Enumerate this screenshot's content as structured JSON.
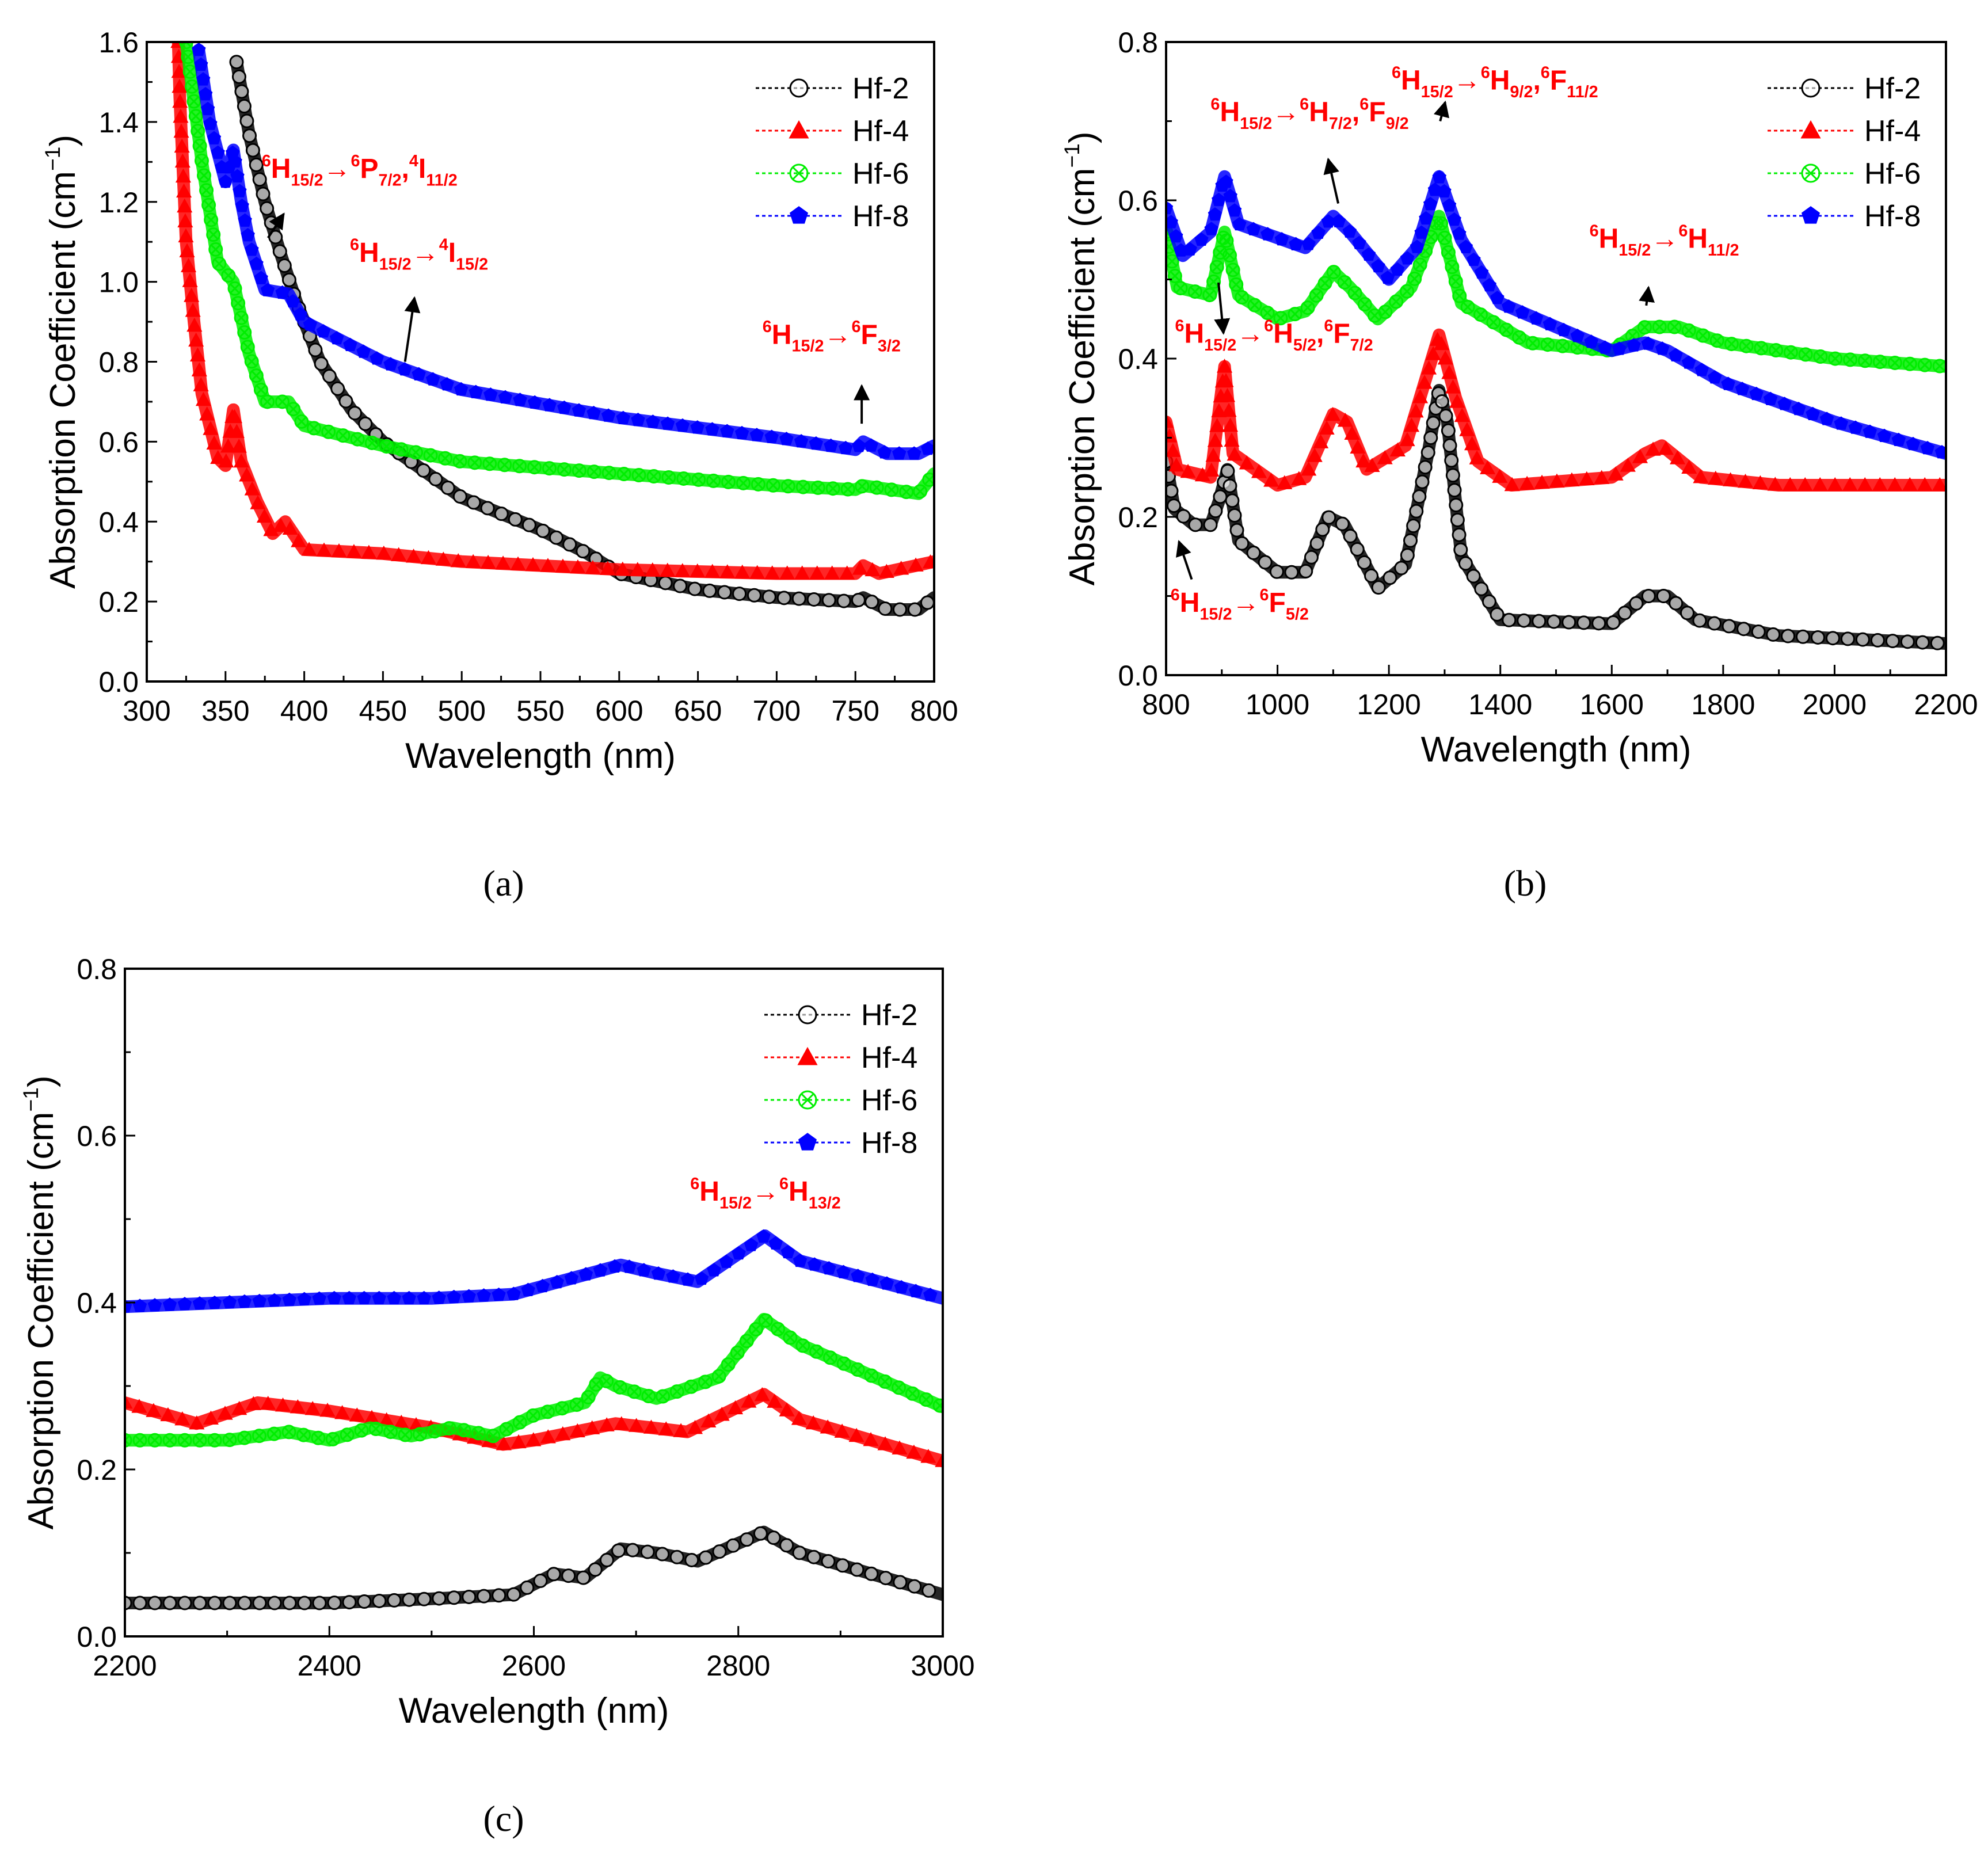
{
  "chart_data": [
    {
      "type": "line",
      "panel_label": "(a)",
      "xlabel": "Wavelength (nm)",
      "ylabel_parts": [
        {
          "t": "Absorption Coefficient (cm"
        },
        {
          "t": "−1",
          "s": "sup"
        },
        {
          "t": ")"
        }
      ],
      "xlim": [
        300,
        800
      ],
      "ylim": [
        0,
        1.6
      ],
      "xticks": [
        300,
        350,
        400,
        450,
        500,
        550,
        600,
        650,
        700,
        750,
        800
      ],
      "yticks": [
        0,
        0.2,
        0.4,
        0.6,
        0.8,
        1.0,
        1.2,
        1.4,
        1.6
      ],
      "grid": false,
      "legend": "top-right",
      "series": [
        {
          "name": "Hf-2",
          "color": "#000000",
          "marker": "circle",
          "x": [
            357,
            365,
            375,
            385,
            395,
            410,
            430,
            450,
            500,
            550,
            580,
            600,
            650,
            700,
            750,
            755,
            770,
            790,
            800
          ],
          "y": [
            1.55,
            1.37,
            1.2,
            1.07,
            0.95,
            0.8,
            0.68,
            0.6,
            0.46,
            0.38,
            0.32,
            0.27,
            0.23,
            0.21,
            0.2,
            0.21,
            0.18,
            0.18,
            0.21
          ]
        },
        {
          "name": "Hf-4",
          "color": "#ff0000",
          "marker": "triangle",
          "x": [
            320,
            321,
            325,
            330,
            335,
            345,
            350,
            355,
            360,
            370,
            380,
            388,
            400,
            450,
            500,
            600,
            700,
            750,
            755,
            765,
            800
          ],
          "y": [
            1.6,
            1.46,
            1.1,
            0.9,
            0.72,
            0.56,
            0.54,
            0.68,
            0.55,
            0.45,
            0.37,
            0.4,
            0.33,
            0.32,
            0.3,
            0.28,
            0.27,
            0.27,
            0.29,
            0.27,
            0.3
          ]
        },
        {
          "name": "Hf-6",
          "color": "#00ee00",
          "marker": "circle-x",
          "x": [
            325,
            335,
            345,
            355,
            365,
            375,
            390,
            400,
            450,
            500,
            600,
            700,
            750,
            755,
            790,
            800
          ],
          "y": [
            1.6,
            1.3,
            1.05,
            1.0,
            0.82,
            0.7,
            0.7,
            0.64,
            0.59,
            0.55,
            0.52,
            0.49,
            0.48,
            0.49,
            0.47,
            0.52
          ]
        },
        {
          "name": "Hf-8",
          "color": "#0000ff",
          "marker": "pentagon",
          "x": [
            333,
            340,
            350,
            355,
            360,
            365,
            375,
            390,
            400,
            450,
            500,
            600,
            700,
            750,
            755,
            770,
            790,
            800
          ],
          "y": [
            1.58,
            1.4,
            1.25,
            1.33,
            1.2,
            1.1,
            0.98,
            0.97,
            0.9,
            0.8,
            0.73,
            0.66,
            0.61,
            0.58,
            0.6,
            0.57,
            0.57,
            0.59
          ]
        }
      ],
      "annotations": [
        {
          "parts": [
            {
              "t": "6",
              "s": "sup"
            },
            {
              "t": "H"
            },
            {
              "t": "15/2",
              "s": "sub"
            },
            {
              "t": "→"
            },
            {
              "t": "6",
              "s": "sup"
            },
            {
              "t": "P"
            },
            {
              "t": "7/2",
              "s": "sub"
            },
            {
              "t": ","
            },
            {
              "t": "4",
              "s": "sup"
            },
            {
              "t": "I"
            },
            {
              "t": "11/2",
              "s": "sub"
            }
          ],
          "x": 373,
          "y": 1.26,
          "arrow": [
            377,
            1.11,
            387,
            1.17
          ]
        },
        {
          "parts": [
            {
              "t": "6",
              "s": "sup"
            },
            {
              "t": "H"
            },
            {
              "t": "15/2",
              "s": "sub"
            },
            {
              "t": "→"
            },
            {
              "t": "4",
              "s": "sup"
            },
            {
              "t": "I"
            },
            {
              "t": "15/2",
              "s": "sub"
            }
          ],
          "x": 429,
          "y": 1.05,
          "arrow": [
            464,
            0.8,
            470,
            0.96
          ]
        },
        {
          "parts": [
            {
              "t": "6",
              "s": "sup"
            },
            {
              "t": "H"
            },
            {
              "t": "15/2",
              "s": "sub"
            },
            {
              "t": "→"
            },
            {
              "t": "6",
              "s": "sup"
            },
            {
              "t": "F"
            },
            {
              "t": "3/2",
              "s": "sub"
            }
          ],
          "x": 691,
          "y": 0.845,
          "arrow": [
            754,
            0.645,
            754,
            0.74
          ]
        }
      ]
    },
    {
      "type": "line",
      "panel_label": "(b)",
      "xlabel": "Wavelength (nm)",
      "ylabel_parts": [
        {
          "t": "Absorption Coefficient (cm"
        },
        {
          "t": "−1",
          "s": "sup"
        },
        {
          "t": ")"
        }
      ],
      "xlim": [
        800,
        2200
      ],
      "ylim": [
        0,
        0.8
      ],
      "xticks": [
        800,
        1000,
        1200,
        1400,
        1600,
        1800,
        2000,
        2200
      ],
      "yticks": [
        0,
        0.2,
        0.4,
        0.6,
        0.8
      ],
      "grid": false,
      "legend": "top-right",
      "series": [
        {
          "name": "Hf-2",
          "color": "#000000",
          "marker": "circle",
          "x": [
            800,
            815,
            850,
            880,
            895,
            910,
            930,
            1000,
            1050,
            1090,
            1120,
            1180,
            1230,
            1270,
            1290,
            1305,
            1330,
            1400,
            1600,
            1660,
            1700,
            1750,
            1900,
            2200
          ],
          "y": [
            0.27,
            0.21,
            0.19,
            0.19,
            0.22,
            0.26,
            0.17,
            0.13,
            0.13,
            0.2,
            0.19,
            0.11,
            0.14,
            0.28,
            0.36,
            0.32,
            0.15,
            0.07,
            0.065,
            0.1,
            0.1,
            0.07,
            0.05,
            0.04
          ]
        },
        {
          "name": "Hf-4",
          "color": "#ff0000",
          "marker": "triangle",
          "x": [
            800,
            820,
            880,
            905,
            920,
            1000,
            1050,
            1100,
            1125,
            1160,
            1230,
            1290,
            1320,
            1360,
            1420,
            1600,
            1660,
            1690,
            1760,
            1900,
            2200
          ],
          "y": [
            0.32,
            0.26,
            0.25,
            0.39,
            0.28,
            0.24,
            0.25,
            0.33,
            0.32,
            0.26,
            0.29,
            0.43,
            0.35,
            0.27,
            0.24,
            0.25,
            0.28,
            0.29,
            0.25,
            0.24,
            0.24
          ]
        },
        {
          "name": "Hf-6",
          "color": "#00ee00",
          "marker": "circle-x",
          "x": [
            800,
            820,
            880,
            905,
            930,
            1000,
            1050,
            1100,
            1130,
            1180,
            1240,
            1290,
            1330,
            1450,
            1600,
            1660,
            1720,
            1800,
            2000,
            2200
          ],
          "y": [
            0.56,
            0.49,
            0.48,
            0.56,
            0.48,
            0.45,
            0.46,
            0.51,
            0.49,
            0.45,
            0.49,
            0.58,
            0.47,
            0.42,
            0.41,
            0.44,
            0.44,
            0.42,
            0.4,
            0.39
          ]
        },
        {
          "name": "Hf-8",
          "color": "#0000ff",
          "marker": "pentagon",
          "x": [
            800,
            830,
            880,
            905,
            930,
            1050,
            1100,
            1130,
            1200,
            1250,
            1290,
            1330,
            1400,
            1600,
            1660,
            1700,
            1800,
            2000,
            2200
          ],
          "y": [
            0.59,
            0.53,
            0.56,
            0.63,
            0.57,
            0.54,
            0.58,
            0.56,
            0.5,
            0.54,
            0.63,
            0.55,
            0.47,
            0.41,
            0.42,
            0.41,
            0.37,
            0.32,
            0.28
          ]
        }
      ],
      "annotations": [
        {
          "parts": [
            {
              "t": "6",
              "s": "sup"
            },
            {
              "t": "H"
            },
            {
              "t": "15/2",
              "s": "sub"
            },
            {
              "t": "→"
            },
            {
              "t": "6",
              "s": "sup"
            },
            {
              "t": "H"
            },
            {
              "t": "7/2",
              "s": "sub"
            },
            {
              "t": ","
            },
            {
              "t": "6",
              "s": "sup"
            },
            {
              "t": "F"
            },
            {
              "t": "9/2",
              "s": "sub"
            }
          ],
          "x": 880,
          "y": 0.7,
          "arrow": [
            1109,
            0.596,
            1091,
            0.652
          ]
        },
        {
          "parts": [
            {
              "t": "6",
              "s": "sup"
            },
            {
              "t": "H"
            },
            {
              "t": "15/2",
              "s": "sub"
            },
            {
              "t": "→"
            },
            {
              "t": "6",
              "s": "sup"
            },
            {
              "t": "H"
            },
            {
              "t": "9/2",
              "s": "sub"
            },
            {
              "t": ","
            },
            {
              "t": "6",
              "s": "sup"
            },
            {
              "t": "F"
            },
            {
              "t": "11/2",
              "s": "sub"
            }
          ],
          "x": 1205,
          "y": 0.74,
          "arrow": [
            1292,
            0.7,
            1301,
            0.724
          ]
        },
        {
          "parts": [
            {
              "t": "6",
              "s": "sup"
            },
            {
              "t": "H"
            },
            {
              "t": "15/2",
              "s": "sub"
            },
            {
              "t": "→"
            },
            {
              "t": "6",
              "s": "sup"
            },
            {
              "t": "H"
            },
            {
              "t": "11/2",
              "s": "sub"
            }
          ],
          "x": 1560,
          "y": 0.54,
          "arrow": [
            1662,
            0.467,
            1666,
            0.49
          ]
        },
        {
          "parts": [
            {
              "t": "6",
              "s": "sup"
            },
            {
              "t": "H"
            },
            {
              "t": "15/2",
              "s": "sub"
            },
            {
              "t": "→"
            },
            {
              "t": "6",
              "s": "sup"
            },
            {
              "t": "H"
            },
            {
              "t": "5/2",
              "s": "sub"
            },
            {
              "t": ","
            },
            {
              "t": "6",
              "s": "sup"
            },
            {
              "t": "F"
            },
            {
              "t": "7/2",
              "s": "sub"
            }
          ],
          "x": 816,
          "y": 0.42,
          "arrow": [
            894,
            0.496,
            903,
            0.432
          ]
        },
        {
          "parts": [
            {
              "t": "6",
              "s": "sup"
            },
            {
              "t": "H"
            },
            {
              "t": "15/2",
              "s": "sub"
            },
            {
              "t": "→"
            },
            {
              "t": "6",
              "s": "sup"
            },
            {
              "t": "F"
            },
            {
              "t": "5/2",
              "s": "sub"
            }
          ],
          "x": 808,
          "y": 0.08,
          "arrow": [
            846,
            0.121,
            823,
            0.169
          ]
        }
      ]
    },
    {
      "type": "line",
      "panel_label": "(c)",
      "xlabel": "Wavelength (nm)",
      "ylabel_parts": [
        {
          "t": "Absorption Coefficient (cm"
        },
        {
          "t": "−1",
          "s": "sup"
        },
        {
          "t": ")"
        }
      ],
      "xlim": [
        2200,
        3000
      ],
      "ylim": [
        0,
        0.8
      ],
      "xticks": [
        2200,
        2400,
        2600,
        2800,
        3000
      ],
      "yticks": [
        0,
        0.2,
        0.4,
        0.6,
        0.8
      ],
      "grid": false,
      "legend": "top-right",
      "series": [
        {
          "name": "Hf-2",
          "color": "#000000",
          "marker": "circle",
          "x": [
            2200,
            2400,
            2500,
            2580,
            2620,
            2650,
            2685,
            2720,
            2760,
            2825,
            2860,
            3000
          ],
          "y": [
            0.04,
            0.04,
            0.045,
            0.05,
            0.075,
            0.07,
            0.105,
            0.1,
            0.09,
            0.125,
            0.1,
            0.05
          ]
        },
        {
          "name": "Hf-4",
          "color": "#ff0000",
          "marker": "triangle",
          "x": [
            2200,
            2270,
            2330,
            2400,
            2500,
            2570,
            2600,
            2680,
            2750,
            2825,
            2860,
            3000
          ],
          "y": [
            0.28,
            0.255,
            0.28,
            0.27,
            0.25,
            0.23,
            0.235,
            0.255,
            0.245,
            0.29,
            0.26,
            0.21
          ]
        },
        {
          "name": "Hf-6",
          "color": "#00ee00",
          "marker": "circle-x",
          "x": [
            2200,
            2300,
            2360,
            2400,
            2440,
            2480,
            2520,
            2560,
            2600,
            2650,
            2665,
            2680,
            2720,
            2780,
            2825,
            2860,
            3000
          ],
          "y": [
            0.235,
            0.235,
            0.245,
            0.235,
            0.25,
            0.24,
            0.25,
            0.24,
            0.265,
            0.28,
            0.31,
            0.3,
            0.285,
            0.31,
            0.38,
            0.35,
            0.275
          ]
        },
        {
          "name": "Hf-8",
          "color": "#0000ff",
          "marker": "pentagon",
          "x": [
            2200,
            2300,
            2400,
            2500,
            2580,
            2640,
            2685,
            2720,
            2760,
            2826,
            2860,
            3000
          ],
          "y": [
            0.395,
            0.4,
            0.405,
            0.405,
            0.41,
            0.43,
            0.445,
            0.435,
            0.425,
            0.48,
            0.45,
            0.405
          ]
        }
      ],
      "annotations": [
        {
          "parts": [
            {
              "t": "6",
              "s": "sup"
            },
            {
              "t": "H"
            },
            {
              "t": "15/2",
              "s": "sub"
            },
            {
              "t": "→"
            },
            {
              "t": "6",
              "s": "sup"
            },
            {
              "t": "H"
            },
            {
              "t": "13/2",
              "s": "sub"
            }
          ],
          "x": 2753,
          "y": 0.522
        }
      ]
    }
  ]
}
